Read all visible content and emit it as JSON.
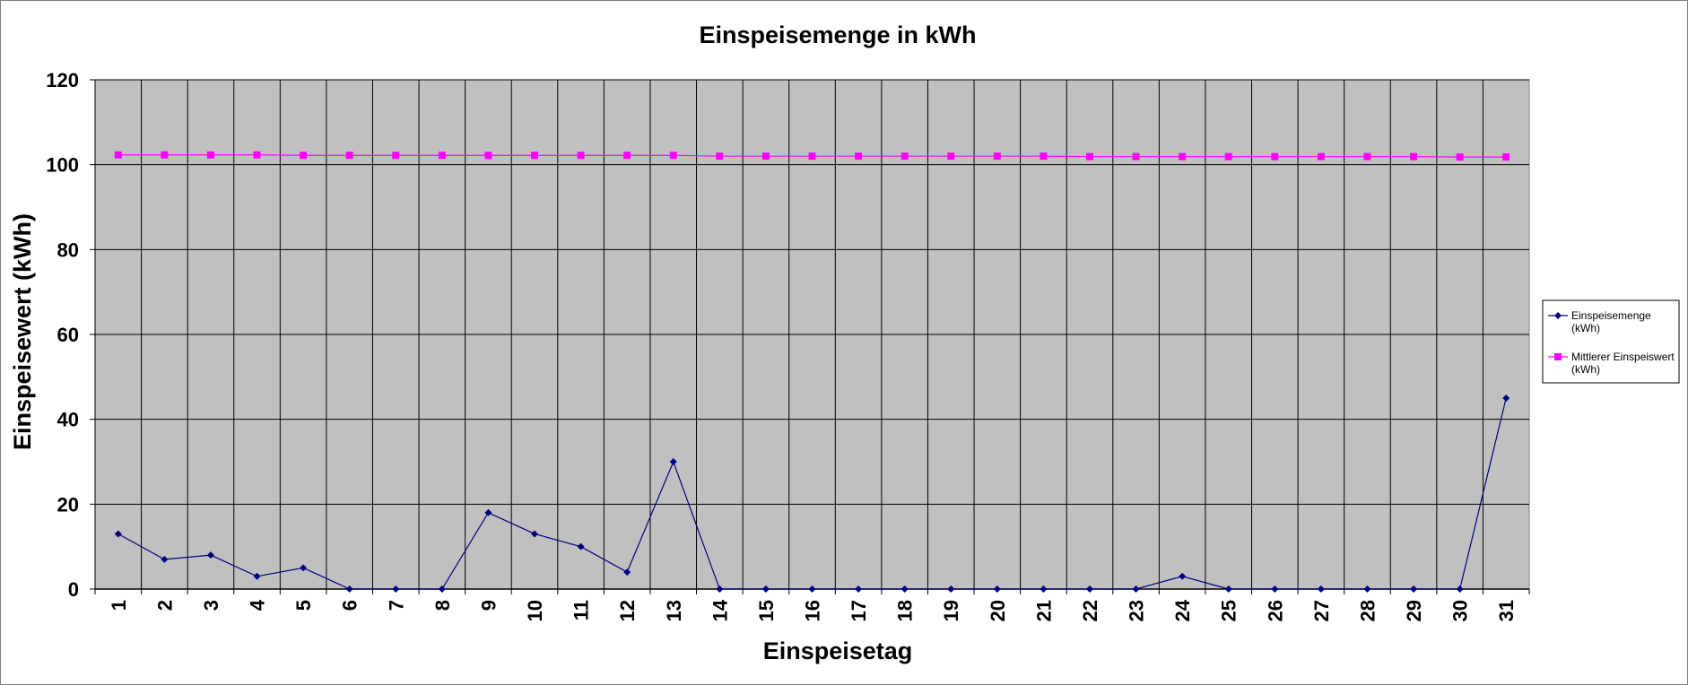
{
  "chart_data": {
    "type": "line",
    "title": "Einspeisemenge in kWh",
    "xlabel": "Einspeisetag",
    "ylabel": "Einspeisewert  (kWh)",
    "categories": [
      "1",
      "2",
      "3",
      "4",
      "5",
      "6",
      "7",
      "8",
      "9",
      "10",
      "11",
      "12",
      "13",
      "14",
      "15",
      "16",
      "17",
      "18",
      "19",
      "20",
      "21",
      "22",
      "23",
      "24",
      "25",
      "26",
      "27",
      "28",
      "29",
      "30",
      "31"
    ],
    "ylim": [
      0,
      120
    ],
    "yticks": [
      0,
      20,
      40,
      60,
      80,
      100,
      120
    ],
    "grid": true,
    "legend_position": "right",
    "series": [
      {
        "name": "Einspeisemenge (kWh)",
        "legend_lines": [
          "Einspeisemenge",
          "(kWh)"
        ],
        "color": "#000080",
        "marker": "diamond",
        "values": [
          13,
          7,
          8,
          3,
          5,
          0,
          0,
          0,
          18,
          13,
          10,
          4,
          30,
          0,
          0,
          0,
          0,
          0,
          0,
          0,
          0,
          0,
          0,
          3,
          0,
          0,
          0,
          0,
          0,
          0,
          45
        ]
      },
      {
        "name": "Mittlerer Einspeiswert (kWh)",
        "legend_lines": [
          "Mittlerer Einspeiswert",
          "(kWh)"
        ],
        "color": "#FF00FF",
        "marker": "square",
        "values": [
          102.3,
          102.3,
          102.3,
          102.3,
          102.2,
          102.2,
          102.2,
          102.2,
          102.2,
          102.2,
          102.2,
          102.2,
          102.2,
          102.0,
          102.0,
          102.0,
          102.0,
          102.0,
          102.0,
          102.0,
          102.0,
          101.9,
          101.9,
          101.9,
          101.9,
          101.9,
          101.9,
          101.9,
          101.9,
          101.8,
          101.8
        ]
      }
    ],
    "colors": {
      "plot_background": "#C0C0C0",
      "gridline": "#000000"
    }
  }
}
